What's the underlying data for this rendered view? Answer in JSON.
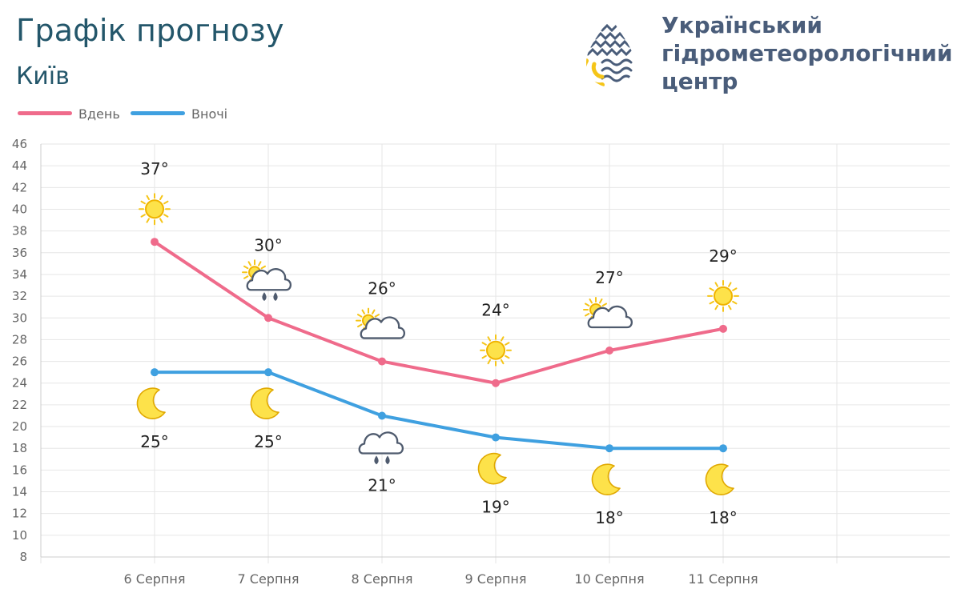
{
  "title": "Графік прогнозу",
  "city": "Київ",
  "logo": {
    "lines": [
      "Український",
      "гідрометеорологічний",
      "центр"
    ],
    "icon": "water-drop-logo-icon",
    "colors": {
      "dark": "#4a5d7a",
      "sun": "#f5c518"
    }
  },
  "legend": [
    {
      "key": "day",
      "label": "Вдень",
      "color": "#ef6b8b"
    },
    {
      "key": "night",
      "label": "Вночі",
      "color": "#3fa0e0"
    }
  ],
  "chart_data": {
    "type": "line",
    "categories": [
      "6 Серпня",
      "7 Серпня",
      "8 Серпня",
      "9 Серпня",
      "10 Серпня",
      "11 Серпня"
    ],
    "ylim": [
      8,
      46
    ],
    "yticks": [
      8,
      10,
      12,
      14,
      16,
      18,
      20,
      22,
      24,
      26,
      28,
      30,
      32,
      34,
      36,
      38,
      40,
      42,
      44,
      46
    ],
    "grid": true,
    "legend_position": "top-left",
    "series": [
      {
        "name": "Вдень",
        "color": "#ef6b8b",
        "values": [
          37,
          30,
          26,
          24,
          27,
          29
        ],
        "labels": [
          "37°",
          "30°",
          "26°",
          "24°",
          "27°",
          "29°"
        ],
        "icons": [
          "sun-icon",
          "sun-cloud-rain-icon",
          "sun-cloud-icon",
          "sun-icon",
          "sun-cloud-icon",
          "sun-icon"
        ]
      },
      {
        "name": "Вночі",
        "color": "#3fa0e0",
        "values": [
          25,
          25,
          21,
          19,
          18,
          18
        ],
        "labels": [
          "25°",
          "25°",
          "21°",
          "19°",
          "18°",
          "18°"
        ],
        "icons": [
          "moon-icon",
          "moon-icon",
          "cloud-rain-icon",
          "moon-icon",
          "moon-icon",
          "moon-icon"
        ]
      }
    ]
  }
}
